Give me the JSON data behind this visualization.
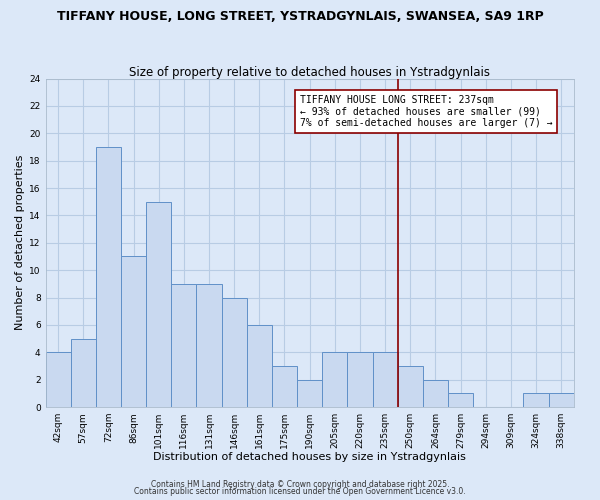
{
  "title": "TIFFANY HOUSE, LONG STREET, YSTRADGYNLAIS, SWANSEA, SA9 1RP",
  "subtitle": "Size of property relative to detached houses in Ystradgynlais",
  "xlabel": "Distribution of detached houses by size in Ystradgynlais",
  "ylabel": "Number of detached properties",
  "bins": [
    "42sqm",
    "57sqm",
    "72sqm",
    "86sqm",
    "101sqm",
    "116sqm",
    "131sqm",
    "146sqm",
    "161sqm",
    "175sqm",
    "190sqm",
    "205sqm",
    "220sqm",
    "235sqm",
    "250sqm",
    "264sqm",
    "279sqm",
    "294sqm",
    "309sqm",
    "324sqm",
    "338sqm"
  ],
  "counts": [
    4,
    5,
    19,
    11,
    15,
    9,
    9,
    8,
    6,
    3,
    2,
    4,
    4,
    4,
    3,
    2,
    1,
    0,
    0,
    1,
    1
  ],
  "bar_color": "#c9d9f0",
  "bar_edge_color": "#6090c8",
  "grid_color": "#b8cce4",
  "background_color": "#dce8f8",
  "vline_x_index": 13.5,
  "vline_color": "#8b0000",
  "annotation_text": "TIFFANY HOUSE LONG STREET: 237sqm\n← 93% of detached houses are smaller (99)\n7% of semi-detached houses are larger (7) →",
  "annotation_box_color": "#ffffff",
  "annotation_box_edge": "#8b0000",
  "ylim": [
    0,
    24
  ],
  "yticks": [
    0,
    2,
    4,
    6,
    8,
    10,
    12,
    14,
    16,
    18,
    20,
    22,
    24
  ],
  "footer1": "Contains HM Land Registry data © Crown copyright and database right 2025.",
  "footer2": "Contains public sector information licensed under the Open Government Licence v3.0.",
  "title_fontsize": 9,
  "subtitle_fontsize": 8.5,
  "axis_label_fontsize": 8,
  "tick_fontsize": 6.5,
  "annotation_fontsize": 7,
  "footer_fontsize": 5.5
}
